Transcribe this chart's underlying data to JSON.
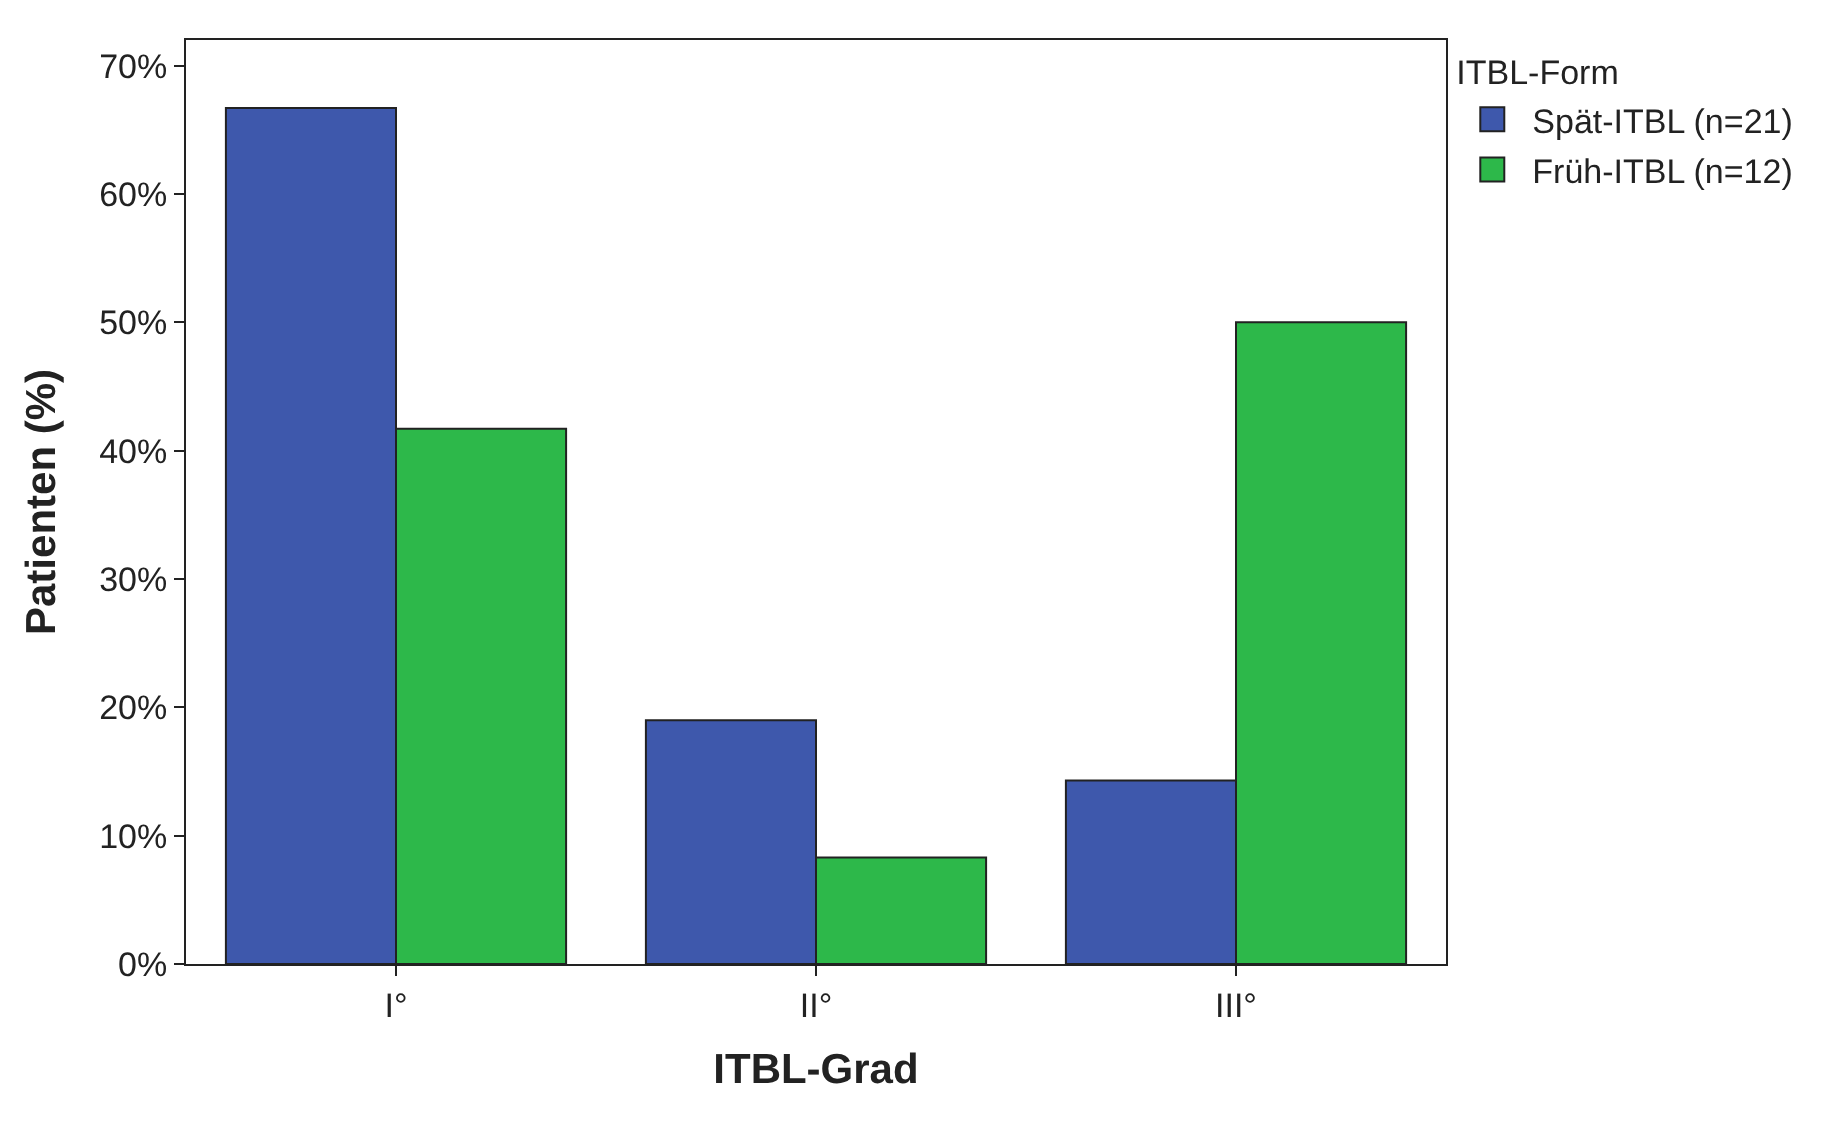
{
  "chart_data": {
    "type": "bar",
    "xlabel": "ITBL-Grad",
    "ylabel": "Patienten (%)",
    "legend_title": "ITBL-Form",
    "categories": [
      "I°",
      "II°",
      "III°"
    ],
    "series": [
      {
        "name": "Spät-ITBL (n=21)",
        "color": "#3e58ac",
        "values": [
          66.7,
          19.0,
          14.3
        ]
      },
      {
        "name": "Früh-ITBL (n=12)",
        "color": "#2db84a",
        "values": [
          41.7,
          8.3,
          50.0
        ]
      }
    ],
    "ylim": [
      0,
      72
    ],
    "yticks": [
      {
        "value": 0,
        "label": "0%"
      },
      {
        "value": 10,
        "label": "10%"
      },
      {
        "value": 20,
        "label": "20%"
      },
      {
        "value": 30,
        "label": "30%"
      },
      {
        "value": 40,
        "label": "40%"
      },
      {
        "value": 50,
        "label": "50%"
      },
      {
        "value": 60,
        "label": "60%"
      },
      {
        "value": 70,
        "label": "70%"
      }
    ],
    "legend": "top right"
  }
}
